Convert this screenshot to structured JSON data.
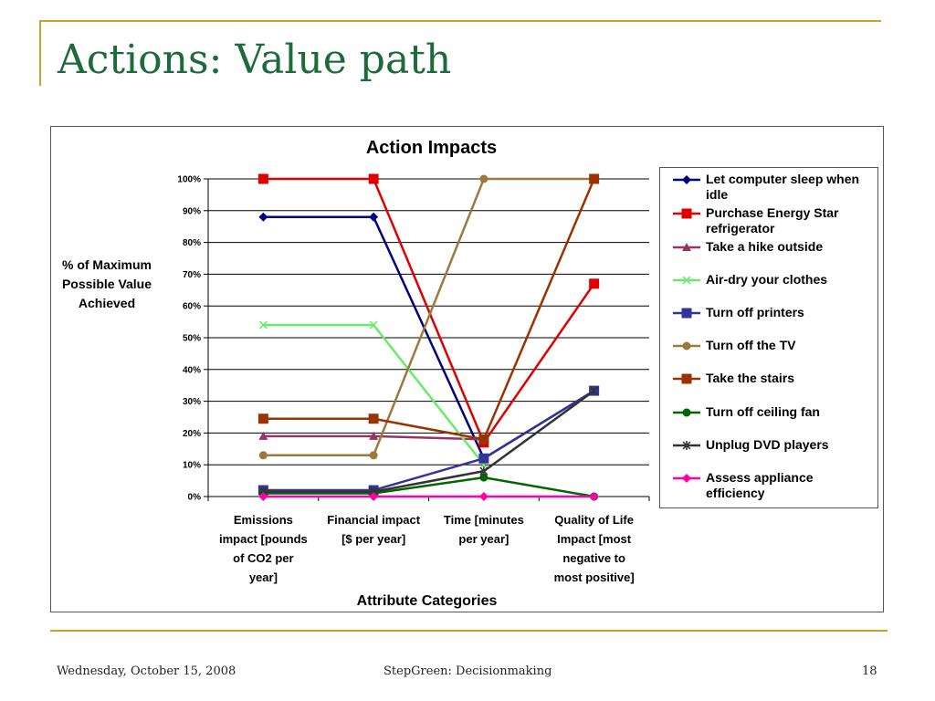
{
  "slide": {
    "title": "Actions: Value path",
    "footer_left": "Wednesday, October 15, 2008",
    "footer_center": "StepGreen: Decisionmaking",
    "footer_right": "18",
    "accent_color": "#c9a227",
    "title_color": "#1d6b3a"
  },
  "chart_data": {
    "type": "line",
    "title": "Action Impacts",
    "xlabel": "Attribute Categories",
    "ylabel": "% of Maximum Possible Value Achieved",
    "categories": [
      "Emissions impact [pounds of CO2 per year]",
      "Financial impact [$ per year]",
      "Time [minutes per year]",
      "Quality of Life Impact [most negative to most positive]"
    ],
    "ylim": [
      0,
      1
    ],
    "yticks": [
      "0%",
      "10%",
      "20%",
      "30%",
      "40%",
      "50%",
      "60%",
      "70%",
      "80%",
      "90%",
      "100%"
    ],
    "grid": true,
    "legend_position": "right",
    "series": [
      {
        "name": "Let computer sleep when idle",
        "color": "#000080",
        "marker": "diamond",
        "values": [
          0.88,
          0.88,
          0.12,
          0.333
        ]
      },
      {
        "name": "Purchase Energy Star refrigerator",
        "color": "#e00000",
        "marker": "square",
        "values": [
          1.0,
          1.0,
          0.17,
          0.67
        ]
      },
      {
        "name": "Take a hike outside",
        "color": "#993366",
        "marker": "triangle",
        "values": [
          0.19,
          0.19,
          0.18,
          null
        ]
      },
      {
        "name": "Air-dry your clothes",
        "color": "#66ee66",
        "marker": "x",
        "values": [
          0.54,
          0.54,
          0.1,
          null
        ]
      },
      {
        "name": "Turn off printers",
        "color": "#333399",
        "marker": "square",
        "values": [
          0.02,
          0.02,
          0.12,
          0.333
        ]
      },
      {
        "name": "Turn off the TV",
        "color": "#9c7a3c",
        "marker": "circle",
        "values": [
          0.13,
          0.13,
          1.0,
          1.0
        ]
      },
      {
        "name": "Take the stairs",
        "color": "#993300",
        "marker": "square",
        "values": [
          0.245,
          0.245,
          0.18,
          1.0
        ]
      },
      {
        "name": "Turn off ceiling fan",
        "color": "#006600",
        "marker": "circle",
        "values": [
          0.01,
          0.01,
          0.06,
          0.0
        ]
      },
      {
        "name": "Unplug DVD players",
        "color": "#333333",
        "marker": "star",
        "values": [
          0.015,
          0.015,
          0.08,
          0.333
        ]
      },
      {
        "name": "Assess appliance efficiency",
        "color": "#ff00aa",
        "marker": "diamond",
        "values": [
          0.0,
          0.0,
          0.0,
          0.0
        ]
      }
    ]
  }
}
